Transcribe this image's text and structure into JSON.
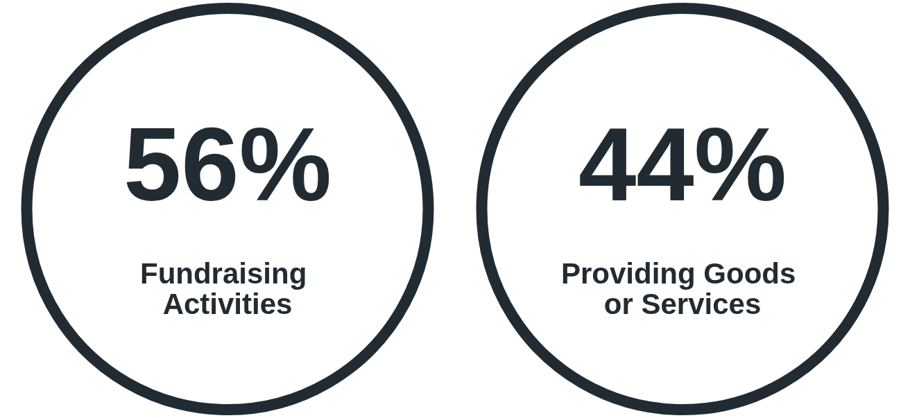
{
  "chart_data": {
    "type": "other",
    "categories": [
      "Fundraising Activities",
      "Providing Goods or Services"
    ],
    "values": [
      56,
      44
    ],
    "value_labels": [
      "56%",
      "44%"
    ],
    "color": "#222b31"
  }
}
